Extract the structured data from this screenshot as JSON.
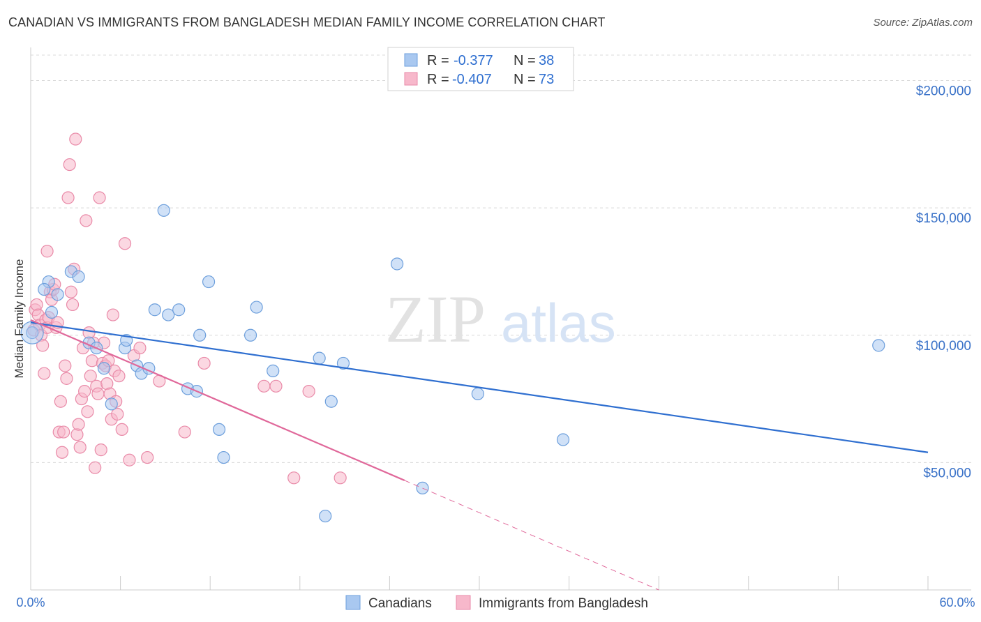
{
  "header": {
    "title": "CANADIAN VS IMMIGRANTS FROM BANGLADESH MEDIAN FAMILY INCOME CORRELATION CHART",
    "source": "Source: ZipAtlas.com"
  },
  "watermark": {
    "zip": "ZIP",
    "atlas": "atlas"
  },
  "legend": {
    "rows": [
      {
        "r_label": "R =",
        "r_value": "-0.377",
        "n_label": "N =",
        "n_value": "38",
        "color": "#a9c8f0"
      },
      {
        "r_label": "R =",
        "r_value": "-0.407",
        "n_label": "N =",
        "n_value": "73",
        "color": "#f7b8cb"
      }
    ]
  },
  "colors": {
    "canadians_fill": "#a9c8f0",
    "canadians_stroke": "#6d9fdc",
    "canadians_line": "#2f6fd0",
    "bangladesh_fill": "#f7b8cb",
    "bangladesh_stroke": "#e98aa8",
    "bangladesh_line": "#e0689a",
    "axis_text": "#3a72c8",
    "grid": "#d8d8d8"
  },
  "chart_data": {
    "type": "scatter",
    "title": "CANADIAN VS IMMIGRANTS FROM BANGLADESH MEDIAN FAMILY INCOME CORRELATION CHART",
    "xlabel": "",
    "ylabel": "Median Family Income",
    "xlim": [
      0,
      60
    ],
    "ylim": [
      0,
      210000
    ],
    "x_tick_labels": [
      "0.0%",
      "60.0%"
    ],
    "y_ticks": [
      50000,
      100000,
      150000,
      200000
    ],
    "y_tick_labels": [
      "$50,000",
      "$100,000",
      "$150,000",
      "$200,000"
    ],
    "grid": true,
    "legend_position": "top-center",
    "series": [
      {
        "name": "Canadians",
        "points": [
          [
            0.1,
            101000
          ],
          [
            1.2,
            121000
          ],
          [
            0.9,
            118000
          ],
          [
            1.8,
            116000
          ],
          [
            1.4,
            109000
          ],
          [
            2.7,
            125000
          ],
          [
            3.2,
            123000
          ],
          [
            3.9,
            97000
          ],
          [
            4.4,
            95000
          ],
          [
            4.9,
            87000
          ],
          [
            5.4,
            73000
          ],
          [
            6.3,
            95000
          ],
          [
            6.4,
            98000
          ],
          [
            7.1,
            88000
          ],
          [
            7.4,
            85000
          ],
          [
            7.9,
            87000
          ],
          [
            8.3,
            110000
          ],
          [
            8.9,
            149000
          ],
          [
            9.2,
            108000
          ],
          [
            9.9,
            110000
          ],
          [
            10.5,
            79000
          ],
          [
            11.1,
            78000
          ],
          [
            11.3,
            100000
          ],
          [
            11.9,
            121000
          ],
          [
            12.6,
            63000
          ],
          [
            12.9,
            52000
          ],
          [
            14.7,
            100000
          ],
          [
            15.1,
            111000
          ],
          [
            16.2,
            86000
          ],
          [
            19.3,
            91000
          ],
          [
            19.7,
            29000
          ],
          [
            20.1,
            74000
          ],
          [
            20.9,
            89000
          ],
          [
            24.5,
            128000
          ],
          [
            26.2,
            40000
          ],
          [
            29.9,
            77000
          ],
          [
            35.6,
            59000
          ],
          [
            56.7,
            96000
          ]
        ]
      },
      {
        "name": "Immigrants from Bangladesh",
        "points": [
          [
            0.2,
            102000
          ],
          [
            0.3,
            110000
          ],
          [
            0.4,
            112000
          ],
          [
            0.5,
            108000
          ],
          [
            0.6,
            104000
          ],
          [
            0.7,
            100000
          ],
          [
            0.8,
            96000
          ],
          [
            0.9,
            85000
          ],
          [
            1.0,
            106000
          ],
          [
            1.1,
            103000
          ],
          [
            1.2,
            107000
          ],
          [
            1.3,
            117000
          ],
          [
            1.4,
            114000
          ],
          [
            1.5,
            118000
          ],
          [
            1.6,
            120000
          ],
          [
            1.7,
            103000
          ],
          [
            1.8,
            105000
          ],
          [
            1.9,
            62000
          ],
          [
            2.0,
            74000
          ],
          [
            2.1,
            54000
          ],
          [
            2.2,
            62000
          ],
          [
            2.3,
            88000
          ],
          [
            2.4,
            83000
          ],
          [
            2.5,
            154000
          ],
          [
            2.6,
            167000
          ],
          [
            2.7,
            117000
          ],
          [
            2.8,
            112000
          ],
          [
            2.9,
            126000
          ],
          [
            3.0,
            177000
          ],
          [
            3.1,
            61000
          ],
          [
            3.2,
            65000
          ],
          [
            3.3,
            56000
          ],
          [
            3.4,
            75000
          ],
          [
            3.5,
            95000
          ],
          [
            3.6,
            78000
          ],
          [
            3.7,
            145000
          ],
          [
            3.8,
            70000
          ],
          [
            3.9,
            101000
          ],
          [
            4.0,
            84000
          ],
          [
            4.1,
            90000
          ],
          [
            4.2,
            97000
          ],
          [
            4.3,
            48000
          ],
          [
            4.4,
            80000
          ],
          [
            4.5,
            77000
          ],
          [
            4.6,
            154000
          ],
          [
            4.7,
            55000
          ],
          [
            4.8,
            89000
          ],
          [
            4.9,
            97000
          ],
          [
            5.0,
            88000
          ],
          [
            5.1,
            81000
          ],
          [
            5.2,
            90000
          ],
          [
            5.3,
            77000
          ],
          [
            5.4,
            67000
          ],
          [
            5.5,
            108000
          ],
          [
            5.6,
            86000
          ],
          [
            5.7,
            74000
          ],
          [
            5.8,
            69000
          ],
          [
            5.9,
            84000
          ],
          [
            6.1,
            63000
          ],
          [
            6.3,
            136000
          ],
          [
            6.6,
            51000
          ],
          [
            6.9,
            92000
          ],
          [
            7.3,
            95000
          ],
          [
            7.8,
            52000
          ],
          [
            8.6,
            82000
          ],
          [
            10.3,
            62000
          ],
          [
            11.6,
            89000
          ],
          [
            15.6,
            80000
          ],
          [
            16.4,
            80000
          ],
          [
            17.6,
            44000
          ],
          [
            18.6,
            78000
          ],
          [
            20.7,
            44000
          ],
          [
            1.1,
            133000
          ]
        ]
      }
    ],
    "trendlines": [
      {
        "series": "Canadians",
        "x": [
          0,
          60
        ],
        "y": [
          105000,
          54000
        ]
      },
      {
        "series": "Immigrants from Bangladesh",
        "x": [
          0,
          25
        ],
        "y": [
          106000,
          43000
        ],
        "dashed_extension_x": [
          25,
          42
        ],
        "dashed_extension_y": [
          43000,
          0
        ]
      }
    ]
  }
}
